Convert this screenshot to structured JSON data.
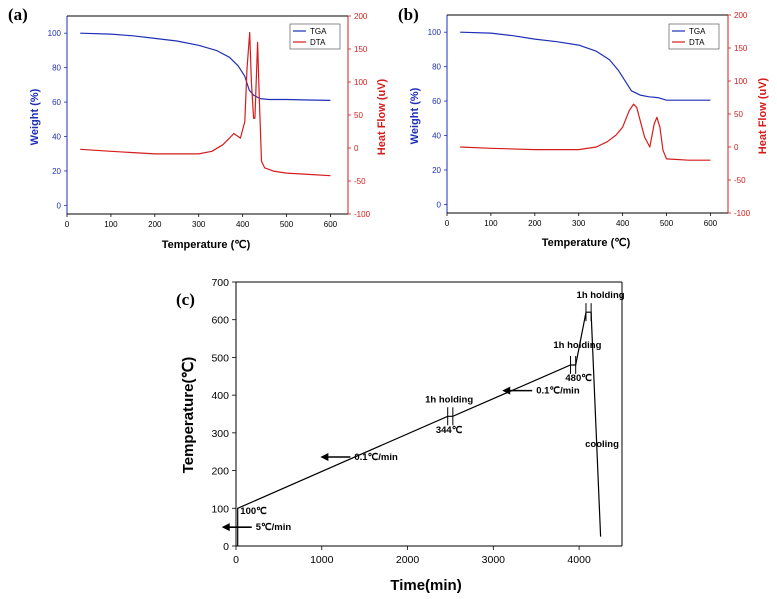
{
  "chart_data": [
    {
      "id": "a",
      "panel_label": "(a)",
      "type": "line",
      "xlabel": "Temperature (℃)",
      "ylabel_left": "Weight  (%)",
      "ylabel_right": "Heat Flow (uV)",
      "xlim": [
        0,
        640
      ],
      "ylim_left": [
        -5,
        110
      ],
      "ylim_right": [
        -100,
        200
      ],
      "xticks": [
        0,
        100,
        200,
        300,
        400,
        500,
        600
      ],
      "yticks_left": [
        0,
        20,
        40,
        60,
        80,
        100
      ],
      "yticks_right": [
        -100,
        -50,
        0,
        50,
        100,
        150,
        200
      ],
      "legend_position": "top-right",
      "series": [
        {
          "name": "TGA",
          "axis": "left",
          "color": "#1f2fb8",
          "x": [
            30,
            100,
            150,
            200,
            250,
            300,
            340,
            370,
            390,
            405,
            415,
            425,
            440,
            460,
            500,
            550,
            600
          ],
          "y": [
            100,
            99.5,
            98.5,
            97,
            95.5,
            93,
            90,
            86,
            81,
            75,
            67,
            64,
            62,
            61.5,
            61.5,
            61.2,
            61
          ]
        },
        {
          "name": "DTA",
          "axis": "right",
          "color": "#d41c1c",
          "x": [
            30,
            100,
            200,
            300,
            330,
            355,
            370,
            380,
            395,
            405,
            410,
            416,
            420,
            425,
            428,
            434,
            438,
            443,
            450,
            470,
            500,
            550,
            600
          ],
          "y": [
            -2,
            -5,
            -9,
            -9,
            -5,
            5,
            15,
            22,
            15,
            40,
            120,
            175,
            100,
            45,
            45,
            160,
            75,
            -20,
            -30,
            -35,
            -38,
            -40,
            -42
          ]
        }
      ]
    },
    {
      "id": "b",
      "panel_label": "(b)",
      "type": "line",
      "xlabel": "Temperature (℃)",
      "ylabel_left": "Weight  (%)",
      "ylabel_right": "Heat Flow (uV)",
      "xlim": [
        0,
        640
      ],
      "ylim_left": [
        -5,
        110
      ],
      "ylim_right": [
        -100,
        200
      ],
      "xticks": [
        0,
        100,
        200,
        300,
        400,
        500,
        600
      ],
      "yticks_left": [
        0,
        20,
        40,
        60,
        80,
        100
      ],
      "yticks_right": [
        -100,
        -50,
        0,
        50,
        100,
        150,
        200
      ],
      "legend_position": "top-right",
      "series": [
        {
          "name": "TGA",
          "axis": "left",
          "color": "#1f2fb8",
          "x": [
            30,
            100,
            150,
            200,
            250,
            300,
            340,
            370,
            390,
            405,
            420,
            440,
            460,
            480,
            500,
            550,
            600
          ],
          "y": [
            100,
            99.5,
            98,
            96,
            94.5,
            92.5,
            89,
            84,
            78,
            72,
            66,
            63.5,
            62.5,
            62,
            60.5,
            60.5,
            60.5
          ]
        },
        {
          "name": "DTA",
          "axis": "right",
          "color": "#d41c1c",
          "x": [
            30,
            100,
            200,
            300,
            340,
            365,
            385,
            400,
            415,
            425,
            432,
            440,
            450,
            462,
            472,
            478,
            485,
            492,
            500,
            550,
            600
          ],
          "y": [
            0,
            -2,
            -4,
            -4,
            0,
            8,
            18,
            30,
            55,
            65,
            60,
            40,
            15,
            0,
            35,
            45,
            30,
            -5,
            -18,
            -20,
            -20
          ]
        }
      ]
    },
    {
      "id": "c",
      "panel_label": "(c)",
      "type": "line",
      "xlabel": "Time(min)",
      "ylabel": "Temperature(℃)",
      "xlim": [
        0,
        4500
      ],
      "ylim": [
        0,
        700
      ],
      "xticks": [
        0,
        1000,
        2000,
        3000,
        4000
      ],
      "yticks": [
        0,
        100,
        200,
        300,
        400,
        500,
        600,
        700
      ],
      "series": [
        {
          "color": "#000000",
          "x": [
            20,
            20,
            2468,
            2528,
            3900,
            3960,
            4080,
            4140,
            4250
          ],
          "y": [
            0,
            100,
            344,
            344,
            480,
            480,
            620,
            620,
            25
          ]
        }
      ],
      "annotations": [
        {
          "text": "100℃",
          "x": 50,
          "y": 85
        },
        {
          "text": "5℃/min",
          "x": 230,
          "y": 42,
          "arrow": true
        },
        {
          "text": "0.1℃/min",
          "x": 1380,
          "y": 228,
          "arrow": true
        },
        {
          "text": "1h holding",
          "x": 2205,
          "y": 380
        },
        {
          "text": "344℃",
          "x": 2330,
          "y": 300
        },
        {
          "text": "0.1℃/min",
          "x": 3500,
          "y": 404,
          "arrow": true
        },
        {
          "text": "480℃",
          "x": 3840,
          "y": 438
        },
        {
          "text": "1h holding",
          "x": 3700,
          "y": 525
        },
        {
          "text": "1h holding",
          "x": 3970,
          "y": 657
        },
        {
          "text": "cooling",
          "x": 4070,
          "y": 262
        }
      ]
    }
  ]
}
